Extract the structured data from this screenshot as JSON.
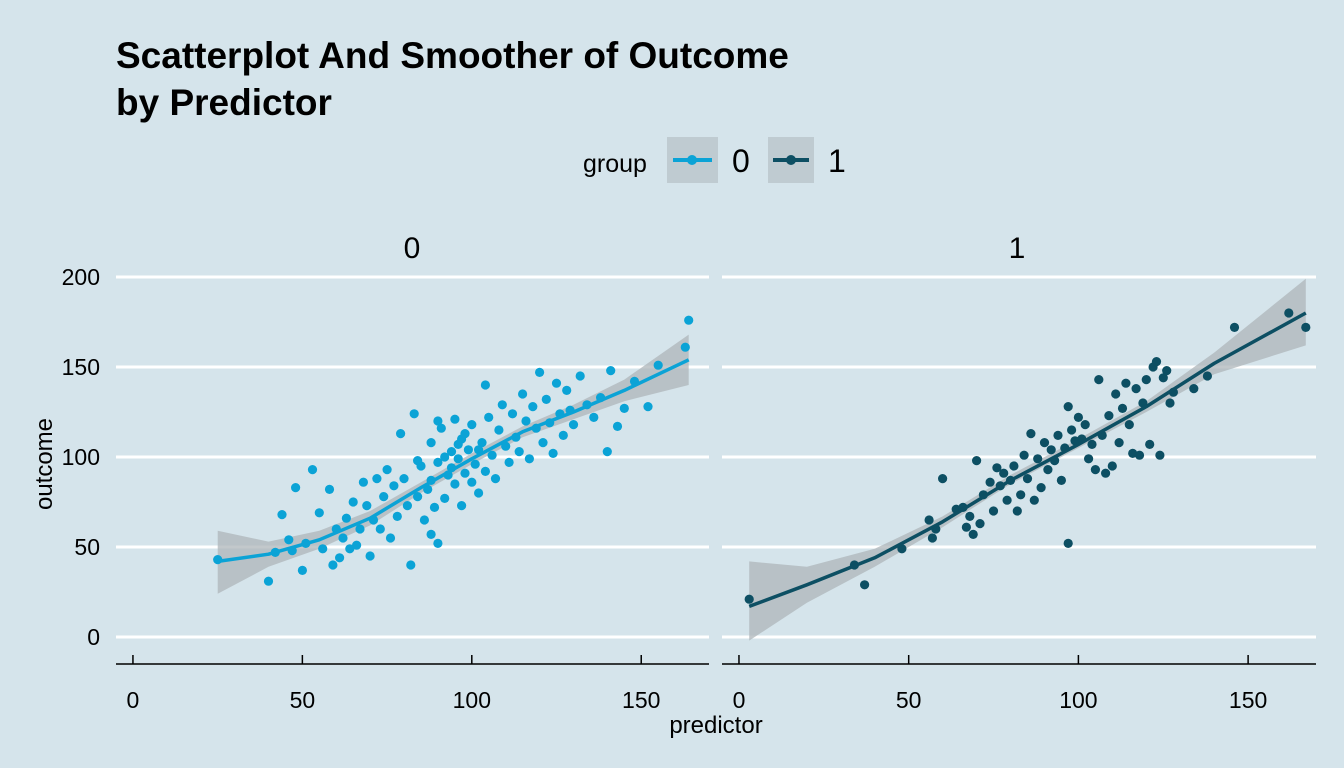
{
  "chart_data": {
    "type": "scatter",
    "title_lines": [
      "Scatterplot And Smoother of Outcome",
      "by Predictor"
    ],
    "xlabel": "predictor",
    "ylabel": "outcome",
    "xlim": [
      -5,
      170
    ],
    "ylim": [
      -15,
      205
    ],
    "x_ticks": [
      0,
      50,
      100,
      150
    ],
    "y_ticks": [
      0,
      50,
      100,
      150,
      200
    ],
    "grid": "horizontal major lines only",
    "legend": {
      "title": "group",
      "position": "top",
      "entries": [
        {
          "label": "0",
          "color": "#0ba3d6"
        },
        {
          "label": "1",
          "color": "#0d4f63"
        }
      ]
    },
    "ribbon_color": "#adb5ba",
    "panels": [
      {
        "strip": "0",
        "color": "#0ba3d6",
        "smooth": {
          "x": [
            25,
            40,
            55,
            70,
            85,
            100,
            115,
            130,
            145,
            164
          ],
          "y": [
            42,
            46,
            54,
            66,
            83,
            99,
            114,
            125,
            137,
            154
          ],
          "lower": [
            24,
            39,
            49,
            62,
            80,
            96,
            111,
            121,
            131,
            140
          ],
          "upper": [
            59,
            53,
            59,
            70,
            86,
            102,
            117,
            129,
            143,
            168
          ]
        },
        "points": [
          [
            25,
            43
          ],
          [
            40,
            31
          ],
          [
            42,
            47
          ],
          [
            44,
            68
          ],
          [
            46,
            54
          ],
          [
            47,
            48
          ],
          [
            48,
            83
          ],
          [
            50,
            37
          ],
          [
            51,
            52
          ],
          [
            53,
            93
          ],
          [
            55,
            69
          ],
          [
            56,
            49
          ],
          [
            58,
            82
          ],
          [
            59,
            40
          ],
          [
            60,
            60
          ],
          [
            61,
            44
          ],
          [
            62,
            55
          ],
          [
            63,
            66
          ],
          [
            64,
            49
          ],
          [
            65,
            75
          ],
          [
            66,
            51
          ],
          [
            67,
            60
          ],
          [
            68,
            86
          ],
          [
            69,
            73
          ],
          [
            70,
            45
          ],
          [
            71,
            65
          ],
          [
            72,
            88
          ],
          [
            73,
            60
          ],
          [
            74,
            78
          ],
          [
            75,
            93
          ],
          [
            76,
            55
          ],
          [
            77,
            84
          ],
          [
            78,
            67
          ],
          [
            79,
            113
          ],
          [
            80,
            88
          ],
          [
            81,
            73
          ],
          [
            82,
            40
          ],
          [
            83,
            124
          ],
          [
            84,
            78
          ],
          [
            85,
            95
          ],
          [
            86,
            65
          ],
          [
            87,
            82
          ],
          [
            88,
            108
          ],
          [
            88,
            87
          ],
          [
            89,
            72
          ],
          [
            90,
            97
          ],
          [
            90,
            52
          ],
          [
            91,
            116
          ],
          [
            92,
            77
          ],
          [
            93,
            90
          ],
          [
            94,
            103
          ],
          [
            95,
            85
          ],
          [
            95,
            121
          ],
          [
            96,
            99
          ],
          [
            97,
            73
          ],
          [
            97,
            110
          ],
          [
            98,
            91
          ],
          [
            99,
            104
          ],
          [
            100,
            86
          ],
          [
            100,
            118
          ],
          [
            101,
            96
          ],
          [
            102,
            80
          ],
          [
            103,
            108
          ],
          [
            104,
            92
          ],
          [
            105,
            122
          ],
          [
            106,
            101
          ],
          [
            107,
            88
          ],
          [
            108,
            115
          ],
          [
            109,
            129
          ],
          [
            110,
            106
          ],
          [
            111,
            97
          ],
          [
            112,
            124
          ],
          [
            113,
            111
          ],
          [
            114,
            103
          ],
          [
            115,
            135
          ],
          [
            116,
            120
          ],
          [
            117,
            99
          ],
          [
            118,
            128
          ],
          [
            119,
            116
          ],
          [
            120,
            147
          ],
          [
            121,
            108
          ],
          [
            122,
            132
          ],
          [
            123,
            119
          ],
          [
            124,
            102
          ],
          [
            125,
            141
          ],
          [
            126,
            124
          ],
          [
            127,
            112
          ],
          [
            128,
            137
          ],
          [
            129,
            126
          ],
          [
            130,
            118
          ],
          [
            132,
            145
          ],
          [
            134,
            129
          ],
          [
            136,
            122
          ],
          [
            138,
            133
          ],
          [
            140,
            103
          ],
          [
            141,
            148
          ],
          [
            143,
            117
          ],
          [
            145,
            127
          ],
          [
            148,
            142
          ],
          [
            152,
            128
          ],
          [
            155,
            151
          ],
          [
            163,
            161
          ],
          [
            164,
            176
          ],
          [
            104,
            140
          ],
          [
            88,
            57
          ],
          [
            92,
            100
          ],
          [
            96,
            107
          ],
          [
            84,
            98
          ],
          [
            90,
            120
          ],
          [
            94,
            94
          ],
          [
            98,
            113
          ],
          [
            102,
            104
          ]
        ]
      },
      {
        "strip": "1",
        "color": "#0d4f63",
        "smooth": {
          "x": [
            3,
            20,
            40,
            60,
            80,
            100,
            120,
            140,
            167
          ],
          "y": [
            17,
            29,
            44,
            64,
            87,
            107,
            128,
            152,
            180
          ],
          "lower": [
            -2,
            19,
            39,
            61,
            85,
            105,
            125,
            146,
            162
          ],
          "upper": [
            42,
            39,
            49,
            67,
            90,
            110,
            131,
            158,
            199
          ]
        },
        "points": [
          [
            3,
            21
          ],
          [
            34,
            40
          ],
          [
            37,
            29
          ],
          [
            48,
            49
          ],
          [
            56,
            65
          ],
          [
            57,
            55
          ],
          [
            58,
            60
          ],
          [
            60,
            88
          ],
          [
            64,
            71
          ],
          [
            66,
            72
          ],
          [
            67,
            61
          ],
          [
            68,
            67
          ],
          [
            69,
            57
          ],
          [
            70,
            98
          ],
          [
            71,
            63
          ],
          [
            72,
            79
          ],
          [
            74,
            86
          ],
          [
            75,
            70
          ],
          [
            76,
            94
          ],
          [
            77,
            84
          ],
          [
            78,
            91
          ],
          [
            79,
            76
          ],
          [
            80,
            87
          ],
          [
            81,
            95
          ],
          [
            82,
            70
          ],
          [
            83,
            79
          ],
          [
            84,
            101
          ],
          [
            85,
            88
          ],
          [
            86,
            113
          ],
          [
            87,
            76
          ],
          [
            88,
            99
          ],
          [
            89,
            83
          ],
          [
            90,
            108
          ],
          [
            91,
            93
          ],
          [
            92,
            104
          ],
          [
            93,
            98
          ],
          [
            94,
            112
          ],
          [
            95,
            87
          ],
          [
            96,
            105
          ],
          [
            97,
            52
          ],
          [
            97,
            128
          ],
          [
            98,
            115
          ],
          [
            99,
            109
          ],
          [
            100,
            122
          ],
          [
            101,
            110
          ],
          [
            102,
            118
          ],
          [
            103,
            99
          ],
          [
            104,
            107
          ],
          [
            105,
            93
          ],
          [
            106,
            143
          ],
          [
            107,
            112
          ],
          [
            108,
            91
          ],
          [
            109,
            123
          ],
          [
            110,
            95
          ],
          [
            111,
            135
          ],
          [
            112,
            108
          ],
          [
            113,
            127
          ],
          [
            114,
            141
          ],
          [
            115,
            118
          ],
          [
            116,
            102
          ],
          [
            117,
            138
          ],
          [
            118,
            101
          ],
          [
            119,
            130
          ],
          [
            120,
            143
          ],
          [
            121,
            107
          ],
          [
            122,
            150
          ],
          [
            123,
            153
          ],
          [
            124,
            101
          ],
          [
            125,
            144
          ],
          [
            126,
            148
          ],
          [
            127,
            130
          ],
          [
            128,
            136
          ],
          [
            134,
            138
          ],
          [
            138,
            145
          ],
          [
            146,
            172
          ],
          [
            162,
            180
          ],
          [
            167,
            172
          ]
        ]
      }
    ]
  }
}
